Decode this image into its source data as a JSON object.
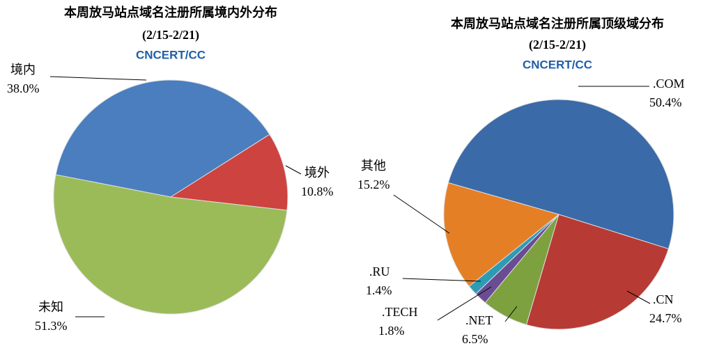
{
  "chart_data": [
    {
      "type": "pie",
      "title": "本周放马站点域名注册所属境内外分布",
      "subtitle": "(2/15-2/21)",
      "logo": "CNCERT/CC",
      "categories": [
        "境内",
        "境外",
        "未知"
      ],
      "values": [
        38.0,
        10.8,
        51.3
      ],
      "value_labels": [
        "38.0%",
        "10.8%",
        "51.3%"
      ],
      "colors": [
        "#4a7ebf",
        "#cc4340",
        "#9bbb59"
      ]
    },
    {
      "type": "pie",
      "title": "本周放马站点域名注册所属顶级域分布",
      "subtitle": "(2/15-2/21)",
      "logo": "CNCERT/CC",
      "categories": [
        ".COM",
        ".CN",
        ".NET",
        ".TECH",
        ".RU",
        "其他"
      ],
      "values": [
        50.4,
        24.7,
        6.5,
        1.8,
        1.4,
        15.2
      ],
      "value_labels": [
        "50.4%",
        "24.7%",
        "6.5%",
        "1.8%",
        "1.4%",
        "15.2%"
      ],
      "colors": [
        "#3a6aa8",
        "#b83a35",
        "#7ea140",
        "#6a4c93",
        "#2e9bb5",
        "#e57f26"
      ]
    }
  ]
}
